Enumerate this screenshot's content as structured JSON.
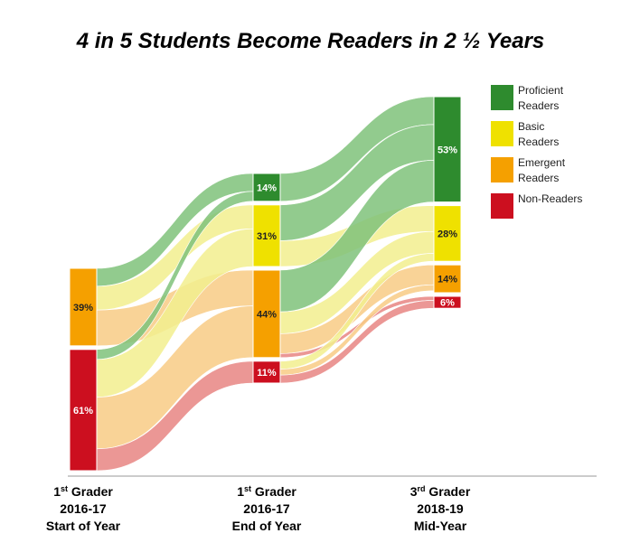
{
  "title": "4 in 5 Students Become Readers in 2 ½ Years",
  "chart_data": {
    "type": "sankey",
    "title": "4 in 5 Students Become Readers in 2 ½ Years",
    "categories": [
      "Proficient Readers",
      "Basic Readers",
      "Emergent Readers",
      "Non-Readers"
    ],
    "colors": {
      "Proficient Readers": "#2e8b2e",
      "Basic Readers": "#efe100",
      "Emergent Readers": "#f5a000",
      "Non-Readers": "#cc0f1f"
    },
    "flow_colors": {
      "Proficient Readers": "#7fc27a",
      "Basic Readers": "#f2ee8e",
      "Emergent Readers": "#f8cb85",
      "Non-Readers": "#e88583"
    },
    "stages": [
      {
        "grade": "1",
        "grade_sup": "st",
        "grade_word": "Grader",
        "year": "2016-17",
        "period": "Start of Year",
        "nodes": [
          {
            "category": "Emergent Readers",
            "value": 39,
            "label": "39%"
          },
          {
            "category": "Non-Readers",
            "value": 61,
            "label": "61%"
          }
        ]
      },
      {
        "grade": "1",
        "grade_sup": "st",
        "grade_word": "Grader",
        "year": "2016-17",
        "period": "End of Year",
        "nodes": [
          {
            "category": "Proficient Readers",
            "value": 14,
            "label": "14%"
          },
          {
            "category": "Basic Readers",
            "value": 31,
            "label": "31%"
          },
          {
            "category": "Emergent Readers",
            "value": 44,
            "label": "44%"
          },
          {
            "category": "Non-Readers",
            "value": 11,
            "label": "11%"
          }
        ]
      },
      {
        "grade": "3",
        "grade_sup": "rd",
        "grade_word": "Grader",
        "year": "2018-19",
        "period": "Mid-Year",
        "nodes": [
          {
            "category": "Proficient Readers",
            "value": 53,
            "label": "53%"
          },
          {
            "category": "Basic Readers",
            "value": 28,
            "label": "28%"
          },
          {
            "category": "Emergent Readers",
            "value": 14,
            "label": "14%"
          },
          {
            "category": "Non-Readers",
            "value": 6,
            "label": "6%"
          }
        ]
      }
    ],
    "flows": [
      {
        "stage": 0,
        "from": "Emergent Readers",
        "to": "Proficient Readers",
        "value": 9
      },
      {
        "stage": 0,
        "from": "Emergent Readers",
        "to": "Basic Readers",
        "value": 12
      },
      {
        "stage": 0,
        "from": "Emergent Readers",
        "to": "Emergent Readers",
        "value": 18
      },
      {
        "stage": 0,
        "from": "Non-Readers",
        "to": "Proficient Readers",
        "value": 5
      },
      {
        "stage": 0,
        "from": "Non-Readers",
        "to": "Basic Readers",
        "value": 19
      },
      {
        "stage": 0,
        "from": "Non-Readers",
        "to": "Emergent Readers",
        "value": 26
      },
      {
        "stage": 0,
        "from": "Non-Readers",
        "to": "Non-Readers",
        "value": 11
      },
      {
        "stage": 1,
        "from": "Proficient Readers",
        "to": "Proficient Readers",
        "value": 14
      },
      {
        "stage": 1,
        "from": "Basic Readers",
        "to": "Proficient Readers",
        "value": 18
      },
      {
        "stage": 1,
        "from": "Basic Readers",
        "to": "Basic Readers",
        "value": 13
      },
      {
        "stage": 1,
        "from": "Emergent Readers",
        "to": "Proficient Readers",
        "value": 21
      },
      {
        "stage": 1,
        "from": "Emergent Readers",
        "to": "Basic Readers",
        "value": 11
      },
      {
        "stage": 1,
        "from": "Emergent Readers",
        "to": "Emergent Readers",
        "value": 10
      },
      {
        "stage": 1,
        "from": "Emergent Readers",
        "to": "Non-Readers",
        "value": 2
      },
      {
        "stage": 1,
        "from": "Non-Readers",
        "to": "Basic Readers",
        "value": 4
      },
      {
        "stage": 1,
        "from": "Non-Readers",
        "to": "Emergent Readers",
        "value": 3
      },
      {
        "stage": 1,
        "from": "Non-Readers",
        "to": "Non-Readers",
        "value": 4
      }
    ]
  }
}
